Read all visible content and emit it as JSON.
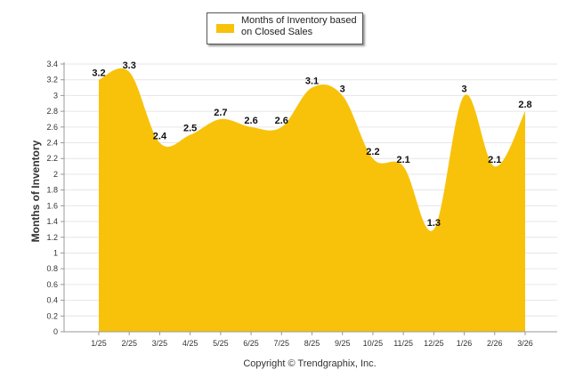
{
  "chart_data": {
    "type": "area",
    "title": "",
    "categories": [
      "1/25",
      "2/25",
      "3/25",
      "4/25",
      "5/25",
      "6/25",
      "7/25",
      "8/25",
      "9/25",
      "10/25",
      "11/25",
      "12/25",
      "1/26",
      "2/26",
      "3/26"
    ],
    "series": [
      {
        "name": "Months of Inventory based on Closed Sales",
        "values": [
          3.2,
          3.3,
          2.4,
          2.5,
          2.7,
          2.6,
          2.6,
          3.1,
          3,
          2.2,
          2.1,
          1.3,
          3,
          2.1,
          2.8
        ],
        "labels": [
          "3.2",
          "3.3",
          "2.4",
          "2.5",
          "2.7",
          "2.6",
          "2.6",
          "3.1",
          "3",
          "2.2",
          "2.1",
          "1.3",
          "3",
          "2.1",
          "2.8"
        ],
        "color": "#f8c20a"
      }
    ],
    "ylabel": "Months of Inventory",
    "xlabel": "",
    "ylim": [
      0,
      3.4
    ],
    "yticks": [
      "0",
      "0.2",
      "0.4",
      "0.6",
      "0.8",
      "1",
      "1.2",
      "1.4",
      "1.6",
      "1.8",
      "2",
      "2.2",
      "2.4",
      "2.6",
      "2.8",
      "3",
      "3.2",
      "3.4"
    ],
    "grid": true,
    "legend_position": "top-center"
  },
  "legend": {
    "label": "Months of Inventory based on Closed Sales"
  },
  "footer": {
    "copyright": "Copyright © Trendgraphix, Inc."
  }
}
